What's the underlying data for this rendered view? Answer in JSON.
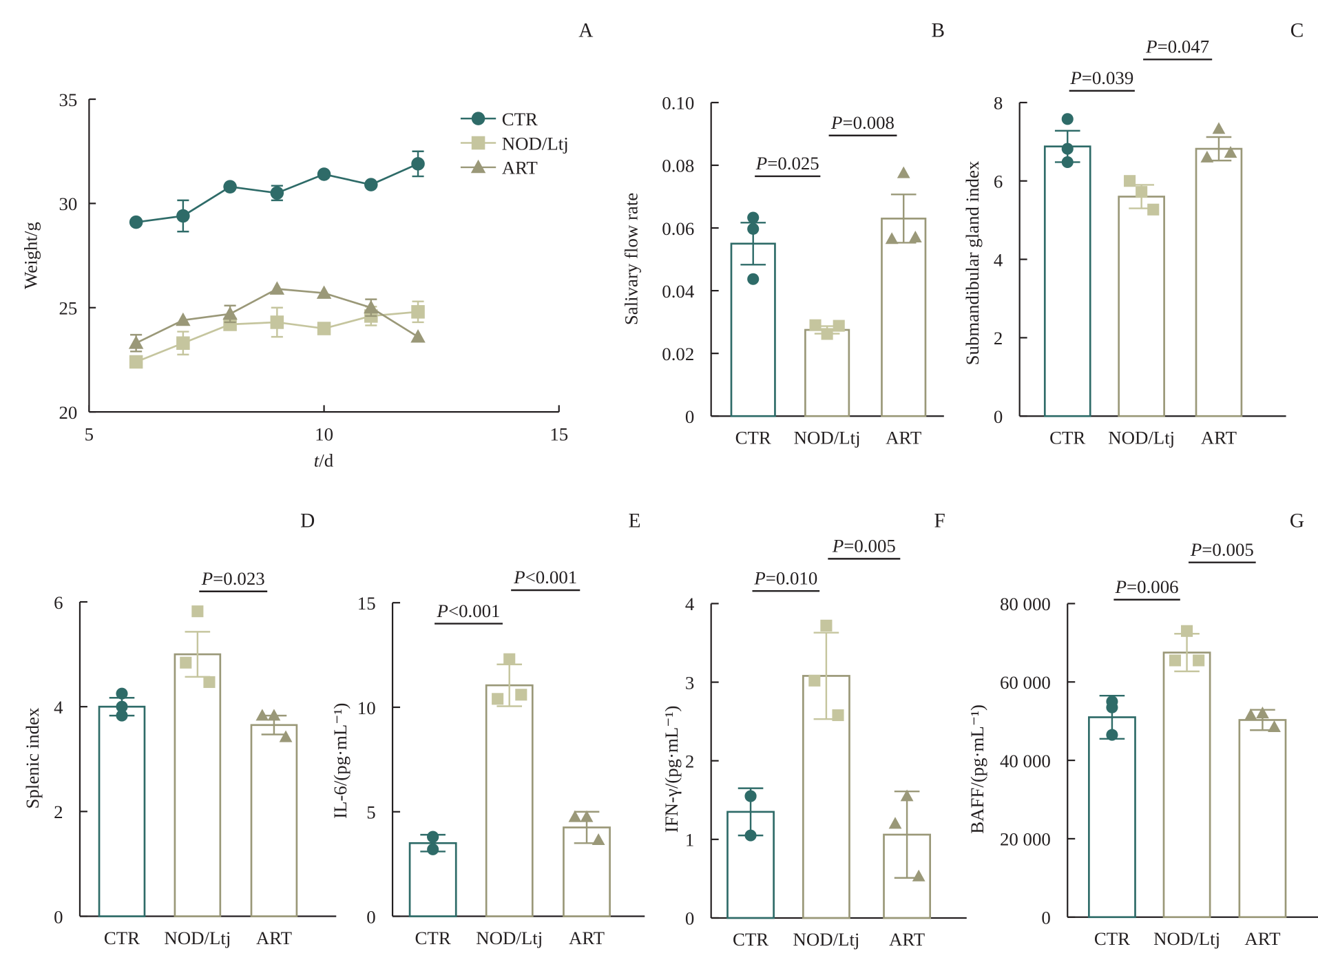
{
  "colors": {
    "CTR": "#2e6b68",
    "NOD/Ltj": "#c5c59e",
    "ART": "#9a9878",
    "axis": "#231f20"
  },
  "chart_data": [
    {
      "panel": "A",
      "type": "line",
      "xlabel": "t/d",
      "ylabel": "Weight/g",
      "xlim": [
        5,
        15
      ],
      "ylim": [
        20,
        35
      ],
      "xticks": [
        5,
        10,
        15
      ],
      "yticks": [
        20,
        25,
        30,
        35
      ],
      "legend": {
        "position": "top-right",
        "entries": [
          "CTR",
          "NOD/Ltj",
          "ART"
        ]
      },
      "x": [
        6,
        7,
        8,
        9,
        10,
        11,
        12
      ],
      "series": [
        {
          "name": "CTR",
          "marker": "circle",
          "values": [
            29.1,
            29.4,
            30.8,
            30.5,
            31.4,
            30.9,
            31.9
          ],
          "err": [
            0,
            0.75,
            0,
            0.35,
            0,
            0,
            0.6
          ]
        },
        {
          "name": "NOD/Ltj",
          "marker": "square",
          "values": [
            22.4,
            23.3,
            24.2,
            24.3,
            24.0,
            24.6,
            24.8
          ],
          "err": [
            0,
            0.55,
            0,
            0.7,
            0,
            0.45,
            0.5
          ]
        },
        {
          "name": "ART",
          "marker": "triangle",
          "values": [
            23.3,
            24.4,
            24.7,
            25.9,
            25.7,
            25.0,
            23.6
          ],
          "err": [
            0.4,
            0,
            0.4,
            0,
            0,
            0.4,
            0
          ]
        }
      ]
    },
    {
      "panel": "B",
      "type": "bar",
      "ylabel": "Salivary flow rate",
      "categories": [
        "CTR",
        "NOD/Ltj",
        "ART"
      ],
      "ylim": [
        0,
        0.1
      ],
      "yticks": [
        "0",
        "0.02",
        "0.04",
        "0.06",
        "0.08",
        "0.10"
      ],
      "ytick_values": [
        0,
        0.02,
        0.04,
        0.06,
        0.08,
        0.1
      ],
      "values": [
        0.055,
        0.0275,
        0.063
      ],
      "err": [
        0.0067,
        0.0012,
        0.0077
      ],
      "points": [
        [
          0.0633,
          0.0597,
          0.0437
        ],
        [
          0.0262,
          0.029,
          0.0288
        ],
        [
          0.0775,
          0.0565,
          0.057
        ]
      ],
      "comparisons": [
        {
          "label": "P=0.025",
          "from": 0,
          "to": 1,
          "level": 0.0765
        },
        {
          "label": "P=0.008",
          "from": 1,
          "to": 2,
          "level": 0.0895
        }
      ]
    },
    {
      "panel": "C",
      "type": "bar",
      "ylabel": "Submandibular gland index",
      "categories": [
        "CTR",
        "NOD/Ltj",
        "ART"
      ],
      "ylim": [
        0,
        8
      ],
      "yticks": [
        "0",
        "2",
        "4",
        "6",
        "8"
      ],
      "ytick_values": [
        0,
        2,
        4,
        6,
        8
      ],
      "values": [
        6.88,
        5.6,
        6.82
      ],
      "err": [
        0.4,
        0.3,
        0.3
      ],
      "points": [
        [
          7.58,
          6.82,
          6.48
        ],
        [
          5.72,
          6.0,
          5.27
        ],
        [
          7.33,
          6.6,
          6.72
        ]
      ],
      "comparisons": [
        {
          "label": "P=0.039",
          "from": 0,
          "to": 1,
          "level": 8.3
        },
        {
          "label": "P=0.047",
          "from": 1,
          "to": 2,
          "level": 9.1
        }
      ]
    },
    {
      "panel": "D",
      "type": "bar",
      "ylabel": "Splenic index",
      "categories": [
        "CTR",
        "NOD/Ltj",
        "ART"
      ],
      "ylim": [
        0,
        6
      ],
      "yticks": [
        "0",
        "2",
        "4",
        "6"
      ],
      "ytick_values": [
        0,
        2,
        4,
        6
      ],
      "values": [
        4.0,
        5.0,
        3.65
      ],
      "err": [
        0.17,
        0.43,
        0.18
      ],
      "points": [
        [
          4.25,
          4.0,
          3.83
        ],
        [
          5.82,
          4.84,
          4.47
        ],
        [
          3.83,
          3.83,
          3.42
        ]
      ],
      "comparisons": [
        {
          "label": "P=0.023",
          "from": 1,
          "to": 2,
          "level": 6.2
        }
      ]
    },
    {
      "panel": "E",
      "type": "bar",
      "ylabel": "IL-6/(pg·mL⁻¹)",
      "categories": [
        "CTR",
        "NOD/Ltj",
        "ART"
      ],
      "ylim": [
        0,
        15
      ],
      "yticks": [
        "0",
        "5",
        "10",
        "15"
      ],
      "ytick_values": [
        0,
        5,
        10,
        15
      ],
      "values": [
        3.5,
        11.05,
        4.25
      ],
      "err": [
        0.4,
        1.0,
        0.75
      ],
      "points": [
        [
          3.8,
          3.8,
          3.2
        ],
        [
          12.3,
          10.4,
          10.6
        ],
        [
          4.75,
          4.75,
          3.65
        ]
      ],
      "comparisons": [
        {
          "label": "P<0.001",
          "from": 0,
          "to": 1,
          "level": 14.0
        },
        {
          "label": "P<0.001",
          "from": 1,
          "to": 2,
          "level": 15.6
        }
      ]
    },
    {
      "panel": "F",
      "type": "bar",
      "ylabel": "IFN-γ/(pg·mL⁻¹)",
      "categories": [
        "CTR",
        "NOD/Ltj",
        "ART"
      ],
      "ylim": [
        0,
        4
      ],
      "yticks": [
        "0",
        "1",
        "2",
        "3",
        "4"
      ],
      "ytick_values": [
        0,
        1,
        2,
        3,
        4
      ],
      "values": [
        1.35,
        3.08,
        1.06
      ],
      "err": [
        0.3,
        0.55,
        0.55
      ],
      "points": [
        [
          1.55,
          1.55,
          1.05
        ],
        [
          3.72,
          3.02,
          2.58
        ],
        [
          1.55,
          1.2,
          0.53
        ]
      ],
      "comparisons": [
        {
          "label": "P=0.010",
          "from": 0,
          "to": 1,
          "level": 4.16
        },
        {
          "label": "P=0.005",
          "from": 1,
          "to": 2,
          "level": 4.57
        }
      ]
    },
    {
      "panel": "G",
      "type": "bar",
      "ylabel": "BAFF/(pg·mL⁻¹)",
      "categories": [
        "CTR",
        "NOD/Ltj",
        "ART"
      ],
      "ylim": [
        0,
        80000
      ],
      "yticks": [
        "0",
        "20 000",
        "40 000",
        "60 000",
        "80 000"
      ],
      "ytick_values": [
        0,
        20000,
        40000,
        60000,
        80000
      ],
      "values": [
        51000,
        67500,
        50300
      ],
      "err": [
        5500,
        4800,
        2600
      ],
      "points": [
        [
          55000,
          53500,
          46500
        ],
        [
          73000,
          65500,
          65500
        ],
        [
          52000,
          51500,
          48500
        ]
      ],
      "comparisons": [
        {
          "label": "P=0.006",
          "from": 0,
          "to": 1,
          "level": 81000
        },
        {
          "label": "P=0.005",
          "from": 1,
          "to": 2,
          "level": 90500
        }
      ]
    }
  ]
}
